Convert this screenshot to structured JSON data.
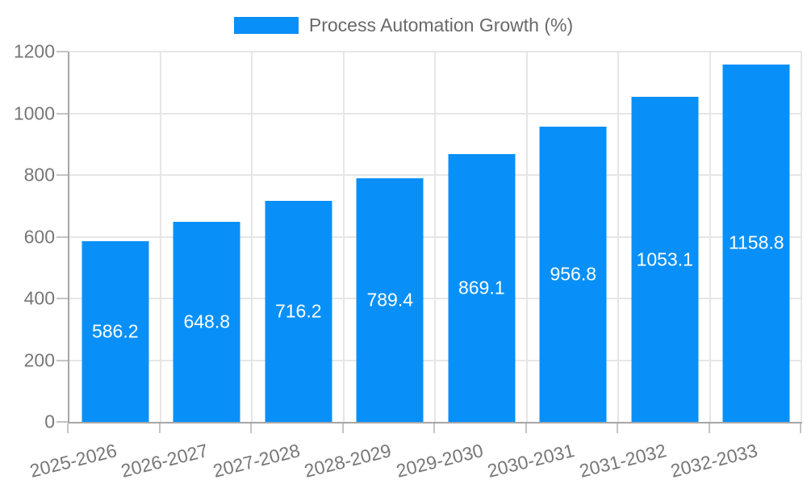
{
  "legend": {
    "label": "Process Automation Growth (%)"
  },
  "chart_data": {
    "type": "bar",
    "title": "",
    "xlabel": "",
    "ylabel": "",
    "categories": [
      "2025-2026",
      "2026-2027",
      "2027-2028",
      "2028-2029",
      "2029-2030",
      "2030-2031",
      "2031-2032",
      "2032-2033"
    ],
    "series": [
      {
        "name": "Process Automation Growth (%)",
        "values": [
          586.2,
          648.8,
          716.2,
          789.4,
          869.1,
          956.8,
          1053.1,
          1158.8
        ]
      }
    ],
    "bar_value_labels": [
      "586.2",
      "648.8",
      "716.2",
      "789.4",
      "869.1",
      "956.8",
      "1053.1",
      "1158.8"
    ],
    "ylim": [
      0,
      1200
    ],
    "yticks": [
      0,
      200,
      400,
      600,
      800,
      1000,
      1200
    ],
    "grid": "on",
    "legend_position": "top"
  },
  "colors": {
    "bar": "#0890F8",
    "grid": "#E6E6E6",
    "axis": "#A6A6A6",
    "tick": "#C4C4C4",
    "tick_label_text": "#777777",
    "legend_text": "#696969",
    "bar_label_text": "#FFFFFF",
    "background": "#FFFFFF"
  }
}
